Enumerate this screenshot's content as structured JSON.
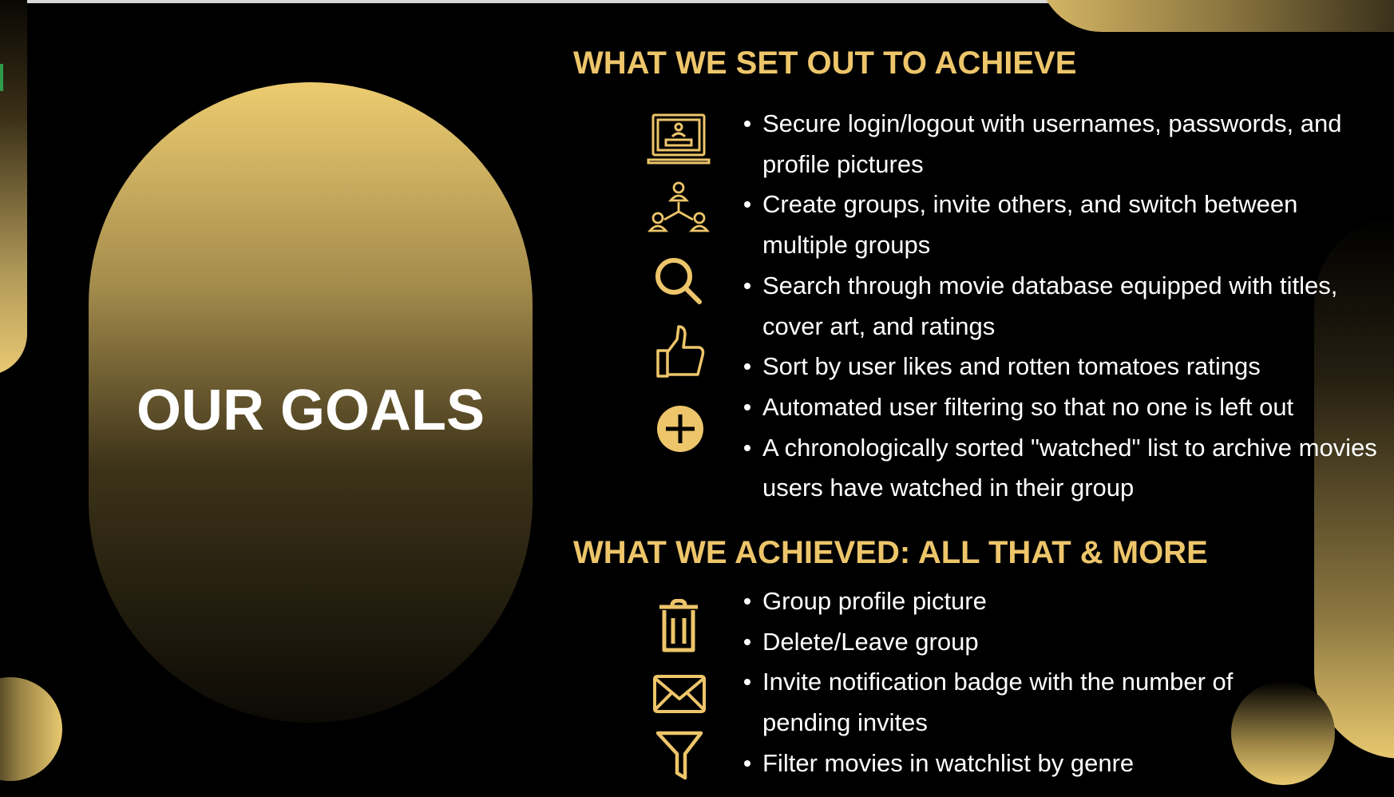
{
  "slide": {
    "title": "OUR GOALS",
    "accent_color": "#edc56a",
    "background_color": "#000000"
  },
  "section_planned": {
    "heading": "WHAT WE SET OUT TO ACHIEVE",
    "items": [
      "Secure login/logout with usernames, passwords, and profile pictures",
      "Create groups, invite others, and switch between multiple groups",
      "Search through movie database equipped with titles, cover art, and ratings",
      "Sort by user likes and rotten tomatoes ratings",
      "Automated user filtering so that no one is left out",
      "A chronologically sorted \"watched\" list to archive movies users have watched in their group"
    ],
    "icons": [
      "laptop-login-icon",
      "group-network-icon",
      "search-icon",
      "thumbs-up-icon",
      "plus-circle-icon"
    ]
  },
  "section_achieved": {
    "heading": "WHAT WE ACHIEVED:  ALL THAT & MORE",
    "items": [
      "Group profile picture",
      "Delete/Leave group",
      "Invite notification badge with the number of pending invites",
      "Filter movies in watchlist by genre"
    ],
    "icons": [
      "trash-icon",
      "envelope-icon",
      "filter-icon"
    ]
  }
}
